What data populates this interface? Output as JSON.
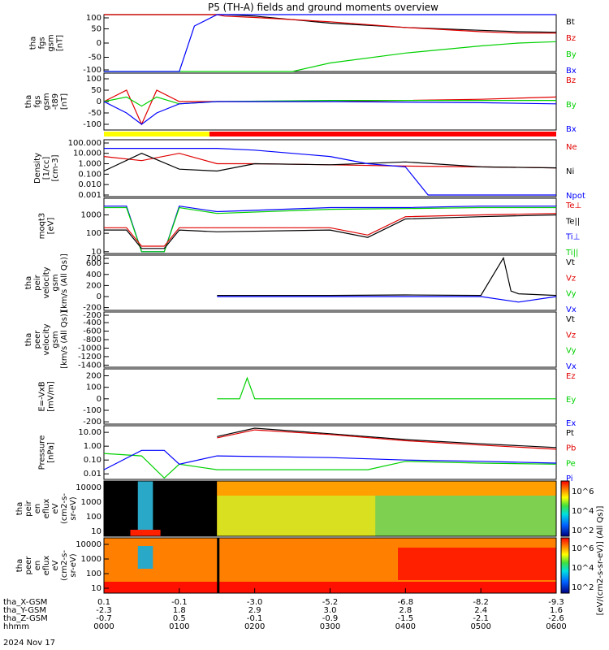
{
  "title": "P5 (TH-A) fields and ground moments overview",
  "colors": {
    "black": "#000000",
    "red": "#e00000",
    "green": "#00d000",
    "blue": "#0000ff",
    "yellow": "#ffff00",
    "bar_red": "#ff0000"
  },
  "time_axis": {
    "rows": [
      {
        "label": "tha_X-GSM",
        "values": [
          "0.1",
          "-0.1",
          "-3.0",
          "-5.2",
          "-6.8",
          "-8.2",
          "-9.3"
        ]
      },
      {
        "label": "tha_Y-GSM",
        "values": [
          "-2.3",
          "1.8",
          "2.9",
          "3.0",
          "2.8",
          "2.4",
          "1.6"
        ]
      },
      {
        "label": "tha_Z-GSM",
        "values": [
          "-0.7",
          "0.5",
          "-0.1",
          "-0.9",
          "-1.5",
          "-2.1",
          "-2.6"
        ]
      },
      {
        "label": "hhmm",
        "values": [
          "0000",
          "0100",
          "0200",
          "0300",
          "0400",
          "0500",
          "0600"
        ]
      }
    ],
    "date": "2024 Nov 17"
  },
  "colorbar_label": "[eV/(cm2-s-sr-eV)] (All Qs)]",
  "colorbar_ticks": [
    "10^6",
    "10^4",
    "10^2"
  ],
  "panels": [
    {
      "id": "p1",
      "ylabel": [
        "tha",
        "fgs",
        "gsm",
        "[nT]"
      ],
      "ticks": [
        "100",
        "50",
        "0",
        "-50",
        "-100"
      ],
      "legend": [
        {
          "t": "Bt",
          "c": "black"
        },
        {
          "t": "Bz",
          "c": "red"
        },
        {
          "t": "By",
          "c": "green"
        },
        {
          "t": "Bx",
          "c": "blue"
        }
      ]
    },
    {
      "id": "p2",
      "ylabel": [
        "tha",
        "fgs",
        "gsm",
        "-t89",
        "[nT]"
      ],
      "ticks": [
        "100",
        "50",
        "0",
        "-50",
        "-100"
      ],
      "legend": [
        {
          "t": "Bz",
          "c": "red"
        },
        {
          "t": "By",
          "c": "green"
        },
        {
          "t": "Bx",
          "c": "blue"
        }
      ]
    },
    {
      "id": "p3",
      "ylabel": [
        "Density",
        "[1/cc]",
        "[cm-3]"
      ],
      "ticks": [
        "100.000",
        "10.000",
        "1.000",
        "0.100",
        "0.010",
        "0.001"
      ],
      "legend": [
        {
          "t": "Ne",
          "c": "red"
        },
        {
          "t": "Ni",
          "c": "black"
        },
        {
          "t": "Npot",
          "c": "blue"
        }
      ]
    },
    {
      "id": "p4",
      "ylabel": [
        "moqt3",
        "[eV]"
      ],
      "ticks": [
        "1000",
        "100",
        "10"
      ],
      "legend": [
        {
          "t": "Te⊥",
          "c": "red"
        },
        {
          "t": "Te||",
          "c": "black"
        },
        {
          "t": "Ti⊥",
          "c": "blue"
        },
        {
          "t": "Ti||",
          "c": "green"
        }
      ]
    },
    {
      "id": "p5",
      "ylabel": [
        "tha",
        "peir",
        "velocity",
        "gsm",
        "[km/s (All Qs)]"
      ],
      "ticks": [
        "700",
        "600",
        "400",
        "200",
        "0",
        "-200"
      ],
      "legend": [
        {
          "t": "Vt",
          "c": "black"
        },
        {
          "t": "Vz",
          "c": "red"
        },
        {
          "t": "Vy",
          "c": "green"
        },
        {
          "t": "Vx",
          "c": "blue"
        }
      ]
    },
    {
      "id": "p6",
      "ylabel": [
        "tha",
        "peer",
        "velocity",
        "gsm",
        "[km/s (All Qs)]"
      ],
      "ticks": [
        "-200",
        "-400",
        "-600",
        "-800",
        "-1000",
        "-1200",
        "-1400"
      ],
      "legend": [
        {
          "t": "Vt",
          "c": "black"
        },
        {
          "t": "Vz",
          "c": "red"
        },
        {
          "t": "Vy",
          "c": "green"
        },
        {
          "t": "Vx",
          "c": "blue"
        }
      ]
    },
    {
      "id": "p7",
      "ylabel": [
        "E=-VxB",
        "[mV/m]"
      ],
      "ticks": [
        "200",
        "100",
        "0",
        "-100",
        "-200"
      ],
      "legend": [
        {
          "t": "Ez",
          "c": "red"
        },
        {
          "t": "Ey",
          "c": "green"
        },
        {
          "t": "Ex",
          "c": "blue"
        }
      ]
    },
    {
      "id": "p8",
      "ylabel": [
        "Pressure",
        "[nPa]"
      ],
      "ticks": [
        "10.00",
        "1.00",
        "0.10",
        "0.01"
      ],
      "legend": [
        {
          "t": "Pt",
          "c": "black"
        },
        {
          "t": "Pb",
          "c": "red"
        },
        {
          "t": "Pe",
          "c": "green"
        },
        {
          "t": "Pi",
          "c": "blue"
        }
      ]
    },
    {
      "id": "p9",
      "ylabel": [
        "tha",
        "peir",
        "en",
        "eflux",
        "eV",
        "(cm2-s-",
        "sr-eV)"
      ],
      "ticks": [
        "10000",
        "1000",
        "100",
        "10"
      ],
      "legend": []
    },
    {
      "id": "p10",
      "ylabel": [
        "tha",
        "peer",
        "en",
        "eflux",
        "eV",
        "(cm2-s-",
        "sr-eV)"
      ],
      "ticks": [
        "10000",
        "1000",
        "100",
        "10"
      ],
      "legend": []
    }
  ],
  "chart_data": {
    "type": "line",
    "title": "P5 (TH-A) fields and ground moments overview",
    "x_ticks": [
      "0000",
      "0100",
      "0200",
      "0300",
      "0400",
      "0500",
      "0600"
    ],
    "xlim": [
      "0000",
      "0600"
    ],
    "series": [
      {
        "name": "Bt",
        "panel": "p1",
        "x": [
          0,
          1.5,
          1.6,
          2.0,
          3.0,
          4.0,
          5.0,
          5.5,
          6.0
        ],
        "y": [
          100,
          100,
          100,
          95,
          70,
          55,
          45,
          40,
          38
        ]
      },
      {
        "name": "Bz",
        "panel": "p1",
        "x": [
          0,
          1.5,
          1.6,
          2.0,
          3.0,
          4.0,
          5.0,
          5.5,
          6.0
        ],
        "y": [
          100,
          100,
          95,
          90,
          75,
          55,
          40,
          35,
          35
        ]
      },
      {
        "name": "By",
        "panel": "p1",
        "x": [
          0,
          2.5,
          3.0,
          4.0,
          5.0,
          5.5,
          6.0
        ],
        "y": [
          -100,
          -100,
          -70,
          -35,
          -10,
          0,
          5
        ]
      },
      {
        "name": "Bx",
        "panel": "p1",
        "x": [
          0,
          0.2,
          1.0,
          1.2,
          1.5,
          3.0,
          5.0,
          6.0
        ],
        "y": [
          -100,
          -100,
          -100,
          60,
          100,
          100,
          100,
          100
        ]
      },
      {
        "name": "Bz",
        "panel": "p2",
        "x": [
          0,
          0.3,
          0.5,
          0.7,
          1.0,
          1.5,
          3.0,
          5.0,
          6.0
        ],
        "y": [
          0,
          50,
          -100,
          50,
          0,
          0,
          0,
          10,
          20
        ]
      },
      {
        "name": "By",
        "panel": "p2",
        "x": [
          0,
          0.3,
          0.5,
          0.7,
          1.0,
          1.5,
          3.0,
          5.0,
          6.0
        ],
        "y": [
          0,
          20,
          -20,
          20,
          -10,
          0,
          5,
          5,
          5
        ]
      },
      {
        "name": "Bx",
        "panel": "p2",
        "x": [
          0,
          0.3,
          0.5,
          0.7,
          1.0,
          1.5,
          3.0,
          5.0,
          6.0
        ],
        "y": [
          0,
          -50,
          -100,
          -50,
          -10,
          0,
          0,
          -5,
          -10
        ]
      },
      {
        "name": "Ne",
        "panel": "p3",
        "x": [
          0,
          0.5,
          1.0,
          1.5,
          2.0,
          3.0,
          4.0,
          5.0,
          6.0
        ],
        "y": [
          5,
          2,
          10,
          1,
          1,
          0.8,
          0.6,
          0.5,
          0.4
        ]
      },
      {
        "name": "Ni",
        "panel": "p3",
        "x": [
          0,
          0.5,
          1.0,
          1.5,
          2.0,
          3.0,
          4.0,
          5.0,
          6.0
        ],
        "y": [
          0.2,
          10,
          0.3,
          0.2,
          1,
          0.8,
          1.5,
          0.5,
          0.4
        ]
      },
      {
        "name": "Npot",
        "panel": "p3",
        "x": [
          0,
          1.5,
          2.0,
          3.0,
          3.5,
          4.0,
          4.3,
          6.0
        ],
        "y": [
          30,
          30,
          20,
          5,
          1,
          0.5,
          0.001,
          0.001
        ]
      },
      {
        "name": "Ti⊥",
        "panel": "p4",
        "x": [
          0,
          0.3,
          0.5,
          0.8,
          1.0,
          1.5,
          3.0,
          4.0,
          5.0,
          6.0
        ],
        "y": [
          3000,
          3000,
          10,
          10,
          3000,
          1500,
          2500,
          2500,
          3000,
          3000
        ]
      },
      {
        "name": "Ti||",
        "panel": "p4",
        "x": [
          0,
          0.3,
          0.5,
          0.8,
          1.0,
          1.5,
          3.0,
          4.0,
          5.0,
          6.0
        ],
        "y": [
          2500,
          2500,
          10,
          10,
          2500,
          1200,
          2000,
          2200,
          2500,
          2500
        ]
      },
      {
        "name": "Te⊥",
        "panel": "p4",
        "x": [
          0,
          0.3,
          0.5,
          0.8,
          1.0,
          1.5,
          3.0,
          3.5,
          4.0,
          5.0,
          6.0
        ],
        "y": [
          200,
          200,
          20,
          20,
          200,
          200,
          200,
          80,
          800,
          1000,
          1200
        ]
      },
      {
        "name": "Te||",
        "panel": "p4",
        "x": [
          0,
          0.3,
          0.5,
          0.8,
          1.0,
          1.5,
          3.0,
          3.5,
          4.0,
          5.0,
          6.0
        ],
        "y": [
          150,
          150,
          15,
          15,
          150,
          120,
          150,
          60,
          600,
          800,
          1000
        ]
      },
      {
        "name": "Vt",
        "panel": "p5",
        "x": [
          1.5,
          3.0,
          4.0,
          5.0,
          5.3,
          5.4,
          5.5,
          6.0
        ],
        "y": [
          20,
          20,
          30,
          20,
          700,
          100,
          50,
          20
        ]
      },
      {
        "name": "Vx",
        "panel": "p5",
        "x": [
          1.5,
          3.0,
          4.0,
          5.0,
          5.5,
          6.0
        ],
        "y": [
          0,
          0,
          0,
          0,
          -100,
          0
        ]
      },
      {
        "name": "Ey",
        "panel": "p7",
        "x": [
          1.5,
          1.8,
          1.9,
          2.0,
          3.0,
          6.0
        ],
        "y": [
          0,
          0,
          180,
          0,
          0,
          0
        ]
      },
      {
        "name": "Pt",
        "panel": "p8",
        "x": [
          1.5,
          2.0,
          3.0,
          4.0,
          5.0,
          6.0
        ],
        "y": [
          5,
          20,
          8,
          3,
          1.5,
          0.8
        ]
      },
      {
        "name": "Pb",
        "panel": "p8",
        "x": [
          1.5,
          2.0,
          3.0,
          4.0,
          5.0,
          6.0
        ],
        "y": [
          4,
          15,
          7,
          2.5,
          1.2,
          0.6
        ]
      },
      {
        "name": "Pe",
        "panel": "p8",
        "x": [
          0,
          0.5,
          0.8,
          1.0,
          1.5,
          3.0,
          3.5,
          4.0,
          5.0,
          6.0
        ],
        "y": [
          0.3,
          0.2,
          0.005,
          0.05,
          0.02,
          0.02,
          0.02,
          0.08,
          0.06,
          0.05
        ]
      },
      {
        "name": "Pi",
        "panel": "p8",
        "x": [
          0,
          0.5,
          0.8,
          1.0,
          1.5,
          3.0,
          4.0,
          5.0,
          6.0
        ],
        "y": [
          0.02,
          0.5,
          0.5,
          0.05,
          0.2,
          0.15,
          0.1,
          0.08,
          0.06
        ]
      }
    ]
  }
}
